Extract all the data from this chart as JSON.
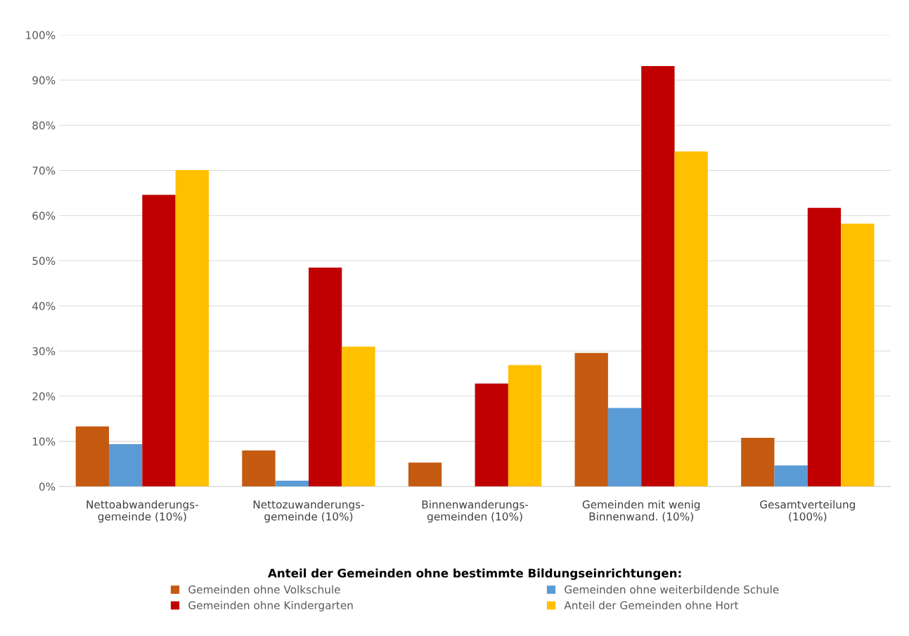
{
  "chart_data": {
    "type": "bar",
    "categories": [
      "Nettoabwanderungs-\ngemeinde (10%)",
      "Nettozuwanderungs-\ngemeinde (10%)",
      "Binnenwanderungs-\ngemeinden (10%)",
      "Gemeinden mit wenig\nBinnenwand. (10%)",
      "Gesamtverteilung\n(100%)"
    ],
    "series": [
      {
        "name": "Gemeinden ohne Volkschule",
        "color": "#c55a11",
        "values": [
          13.3,
          8.0,
          5.3,
          29.6,
          10.8
        ]
      },
      {
        "name": "Gemeinden ohne weiterbildende Schule",
        "color": "#5b9bd5",
        "values": [
          9.4,
          1.3,
          0,
          17.4,
          4.7
        ]
      },
      {
        "name": "Gemeinden ohne Kindergarten",
        "color": "#c00000",
        "values": [
          64.6,
          48.5,
          22.8,
          93.1,
          61.7
        ]
      },
      {
        "name": "Anteil der Gemeinden ohne Hort",
        "color": "#ffc000",
        "values": [
          70.1,
          31.0,
          26.9,
          74.2,
          58.2
        ]
      }
    ],
    "legend_title": "Anteil der Gemeinden ohne bestimmte Bildungseinrichtungen:",
    "legend": "bottom",
    "ylim": [
      0,
      100
    ],
    "yticks": [
      {
        "value": 0,
        "label": "0%"
      },
      {
        "value": 10,
        "label": "10%"
      },
      {
        "value": 20,
        "label": "20%"
      },
      {
        "value": 30,
        "label": "30%"
      },
      {
        "value": 40,
        "label": "40%"
      },
      {
        "value": 50,
        "label": "50%"
      },
      {
        "value": 60,
        "label": "60%"
      },
      {
        "value": 70,
        "label": "70%"
      },
      {
        "value": 80,
        "label": "80%"
      },
      {
        "value": 90,
        "label": "90%"
      },
      {
        "value": 100,
        "label": "100%"
      }
    ],
    "grid": "y"
  }
}
